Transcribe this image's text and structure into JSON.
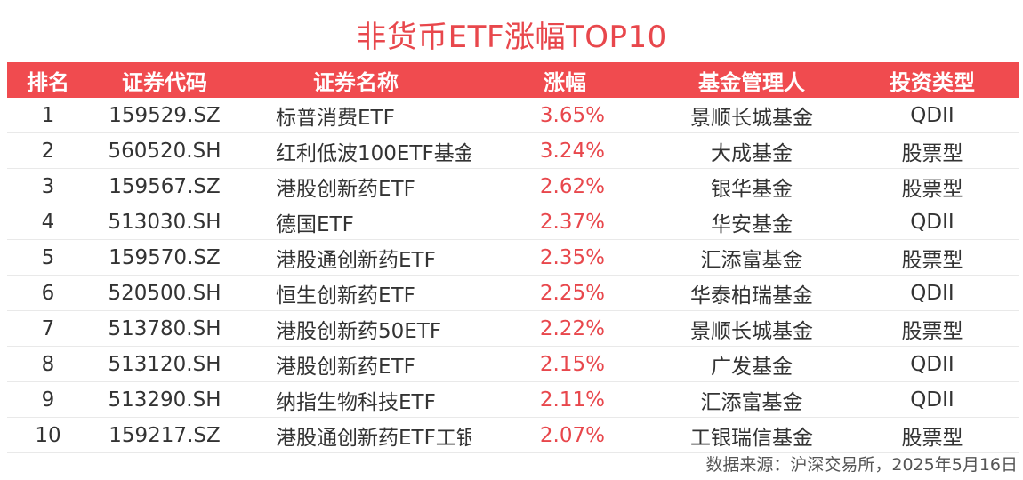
{
  "title": "非货币ETF涨幅TOP10",
  "columns": [
    "排名",
    "证券代码",
    "证券名称",
    "涨幅",
    "基金管理人",
    "投资类型"
  ],
  "rows": [
    {
      "rank": "1",
      "code": "159529.SZ",
      "name": "标普消费ETF",
      "change": "3.65%",
      "manager": "景顺长城基金",
      "type": "QDII"
    },
    {
      "rank": "2",
      "code": "560520.SH",
      "name": "红利低波100ETF基金",
      "change": "3.24%",
      "manager": "大成基金",
      "type": "股票型"
    },
    {
      "rank": "3",
      "code": "159567.SZ",
      "name": "港股创新药ETF",
      "change": "2.62%",
      "manager": "银华基金",
      "type": "股票型"
    },
    {
      "rank": "4",
      "code": "513030.SH",
      "name": "德国ETF",
      "change": "2.37%",
      "manager": "华安基金",
      "type": "QDII"
    },
    {
      "rank": "5",
      "code": "159570.SZ",
      "name": "港股通创新药ETF",
      "change": "2.35%",
      "manager": "汇添富基金",
      "type": "股票型"
    },
    {
      "rank": "6",
      "code": "520500.SH",
      "name": "恒生创新药ETF",
      "change": "2.25%",
      "manager": "华泰柏瑞基金",
      "type": "QDII"
    },
    {
      "rank": "7",
      "code": "513780.SH",
      "name": "港股创新药50ETF",
      "change": "2.22%",
      "manager": "景顺长城基金",
      "type": "股票型"
    },
    {
      "rank": "8",
      "code": "513120.SH",
      "name": "港股创新药ETF",
      "change": "2.15%",
      "manager": "广发基金",
      "type": "QDII"
    },
    {
      "rank": "9",
      "code": "513290.SH",
      "name": "纳指生物科技ETF",
      "change": "2.11%",
      "manager": "汇添富基金",
      "type": "QDII"
    },
    {
      "rank": "10",
      "code": "159217.SZ",
      "name": "港股通创新药ETF工银",
      "change": "2.07%",
      "manager": "工银瑞信基金",
      "type": "股票型"
    }
  ],
  "source": "数据来源：沪深交易所，2025年5月16日",
  "colors": {
    "accent": "#f04b4f",
    "positive": "#e8474c"
  }
}
